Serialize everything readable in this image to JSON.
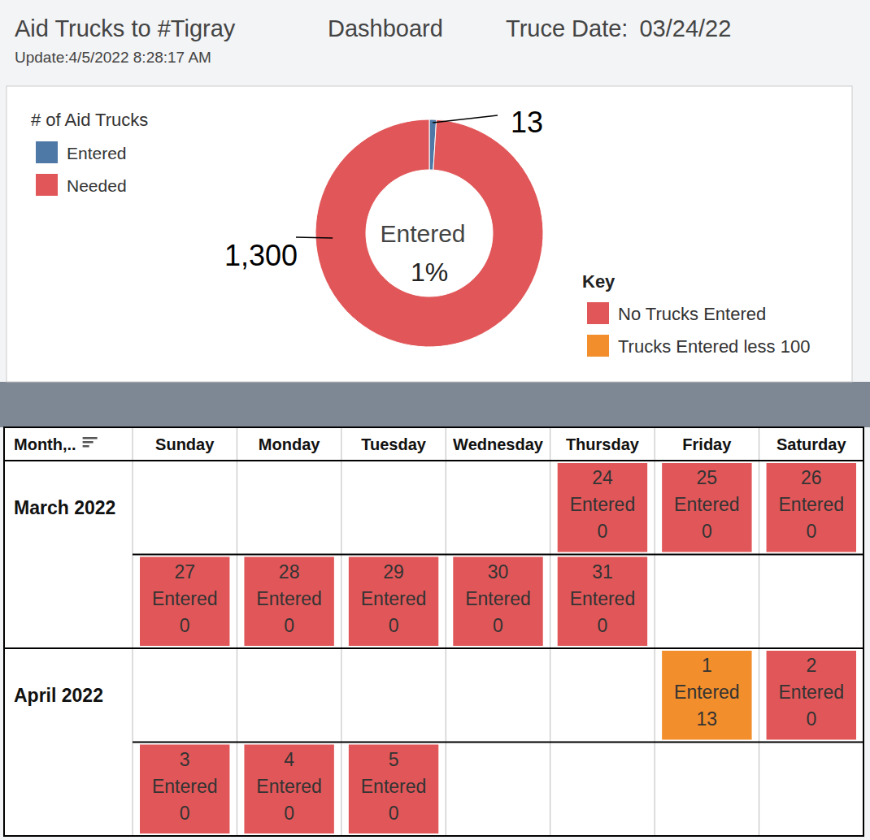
{
  "header": {
    "title": "Aid Trucks to #Tigray",
    "label": "Dashboard",
    "truce_label": "Truce Date:",
    "truce_date": "03/24/22",
    "update": "Update:4/5/2022 8:28:17 AM"
  },
  "chart_data": {
    "type": "donut",
    "legend_title": "# of Aid Trucks",
    "categories": [
      "Entered",
      "Needed"
    ],
    "values": [
      13,
      1300
    ],
    "value_labels": [
      "13",
      "1,300"
    ],
    "colors": [
      "#4e79a7",
      "#e15759"
    ],
    "data_labels": true,
    "legend": "upper left",
    "center": {
      "label": "Entered",
      "value": 1,
      "value_label": "1%"
    }
  },
  "key": {
    "title": "Key",
    "items": [
      {
        "label": "No Trucks Entered",
        "color": "#e15759"
      },
      {
        "label": "Trucks Entered less 100",
        "color": "#f28e2b"
      }
    ]
  },
  "calendar": {
    "corner": "Month,..",
    "weekdays": [
      "Sunday",
      "Monday",
      "Tuesday",
      "Wednesday",
      "Thursday",
      "Friday",
      "Saturday"
    ],
    "months": [
      {
        "label": "March 2022",
        "weeks": [
          [
            null,
            null,
            null,
            null,
            {
              "day": 24,
              "label": "Entered",
              "value": 0,
              "color": "#e15759"
            },
            {
              "day": 25,
              "label": "Entered",
              "value": 0,
              "color": "#e15759"
            },
            {
              "day": 26,
              "label": "Entered",
              "value": 0,
              "color": "#e15759"
            }
          ],
          [
            {
              "day": 27,
              "label": "Entered",
              "value": 0,
              "color": "#e15759"
            },
            {
              "day": 28,
              "label": "Entered",
              "value": 0,
              "color": "#e15759"
            },
            {
              "day": 29,
              "label": "Entered",
              "value": 0,
              "color": "#e15759"
            },
            {
              "day": 30,
              "label": "Entered",
              "value": 0,
              "color": "#e15759"
            },
            {
              "day": 31,
              "label": "Entered",
              "value": 0,
              "color": "#e15759"
            },
            null,
            null
          ]
        ]
      },
      {
        "label": "April 2022",
        "weeks": [
          [
            null,
            null,
            null,
            null,
            null,
            {
              "day": 1,
              "label": "Entered",
              "value": 13,
              "color": "#f28e2b"
            },
            {
              "day": 2,
              "label": "Entered",
              "value": 0,
              "color": "#e15759"
            }
          ],
          [
            {
              "day": 3,
              "label": "Entered",
              "value": 0,
              "color": "#e15759"
            },
            {
              "day": 4,
              "label": "Entered",
              "value": 0,
              "color": "#e15759"
            },
            {
              "day": 5,
              "label": "Entered",
              "value": 0,
              "color": "#e15759"
            },
            null,
            null,
            null,
            null
          ]
        ]
      }
    ]
  }
}
